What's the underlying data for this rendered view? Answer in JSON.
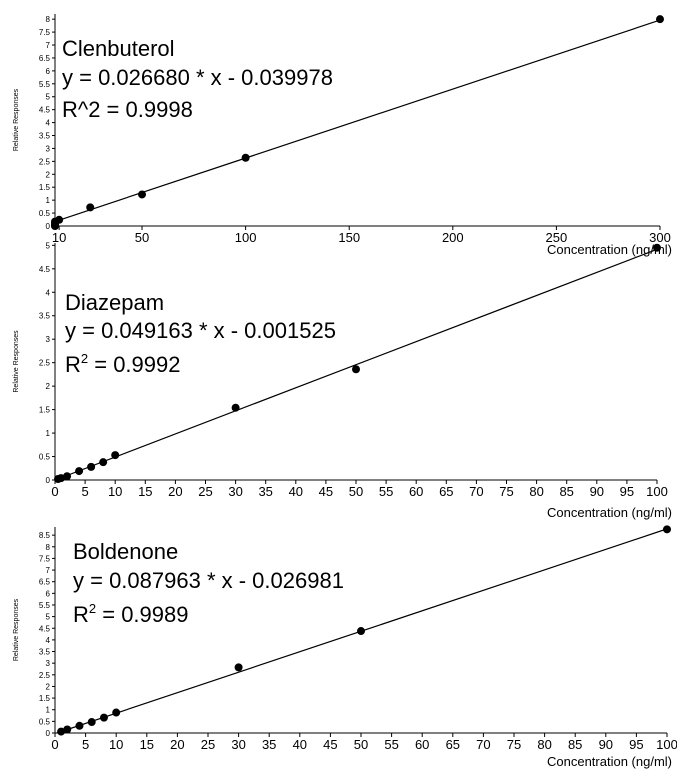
{
  "chart_data": [
    {
      "type": "scatter",
      "title": "Clenbuterol",
      "equation": "y = 0.026680 * x  - 0.039978",
      "r2_base": "R^2 = 0.9998",
      "r2_sup": "",
      "r2_rest": "",
      "xlabel": "Concentration (ng/ml)",
      "ylabel": "Relative Responses",
      "xlim": [
        8,
        300
      ],
      "ylim": [
        0,
        8.2
      ],
      "xticks": [
        10,
        50,
        100,
        150,
        200,
        250,
        300
      ],
      "xtick_labels": [
        "10",
        "50",
        "100",
        "150",
        "200",
        "250",
        "300"
      ],
      "yticks": [
        0,
        0.5,
        1,
        1.5,
        2,
        2.5,
        3,
        3.5,
        4,
        4.5,
        5,
        5.5,
        6,
        6.5,
        7,
        7.5,
        8
      ],
      "ytick_labels": [
        "0",
        "0.5",
        "1",
        "1.5",
        "2",
        "2.5",
        "3",
        "3.5",
        "4",
        "4.5",
        "5",
        "5.5",
        "6",
        "6.5",
        "7",
        "7.5",
        "8"
      ],
      "fit": {
        "slope": 0.02668,
        "intercept": -0.039978
      },
      "points": [
        {
          "x": 1,
          "y": 0.0
        },
        {
          "x": 2,
          "y": 0.01
        },
        {
          "x": 4,
          "y": 0.06
        },
        {
          "x": 6,
          "y": 0.12
        },
        {
          "x": 8,
          "y": 0.17
        },
        {
          "x": 10,
          "y": 0.24
        },
        {
          "x": 25,
          "y": 0.72
        },
        {
          "x": 50,
          "y": 1.22
        },
        {
          "x": 100,
          "y": 2.64
        },
        {
          "x": 300,
          "y": 8.0
        }
      ]
    },
    {
      "type": "scatter",
      "title": "Diazepam",
      "equation": "y = 0.049163 * x  - 0.001525",
      "r2_base": "R",
      "r2_sup": "2",
      "r2_rest": " = 0.9992",
      "xlabel": "Concentration (ng/ml)",
      "ylabel": "Relative Responses",
      "xlim": [
        0,
        100
      ],
      "ylim": [
        0,
        5.05
      ],
      "xticks": [
        0,
        5,
        10,
        15,
        20,
        25,
        30,
        35,
        40,
        45,
        50,
        55,
        60,
        65,
        70,
        75,
        80,
        85,
        90,
        95,
        100
      ],
      "xtick_labels": [
        "0",
        "5",
        "10",
        "15",
        "20",
        "25",
        "30",
        "35",
        "40",
        "45",
        "50",
        "55",
        "60",
        "65",
        "70",
        "75",
        "80",
        "85",
        "90",
        "95",
        "100"
      ],
      "yticks": [
        0,
        0.5,
        1,
        1.5,
        2,
        2.5,
        3,
        3.5,
        4,
        4.5,
        5
      ],
      "ytick_labels": [
        "0",
        "0.5",
        "1",
        "1.5",
        "2",
        "2.5",
        "3",
        "3.5",
        "4",
        "4.5",
        "5"
      ],
      "fit": {
        "slope": 0.049163,
        "intercept": -0.001525
      },
      "points": [
        {
          "x": 0.5,
          "y": 0.02
        },
        {
          "x": 1,
          "y": 0.04
        },
        {
          "x": 2,
          "y": 0.08
        },
        {
          "x": 4,
          "y": 0.19
        },
        {
          "x": 6,
          "y": 0.28
        },
        {
          "x": 8,
          "y": 0.38
        },
        {
          "x": 10,
          "y": 0.53
        },
        {
          "x": 30,
          "y": 1.54
        },
        {
          "x": 50,
          "y": 2.36
        },
        {
          "x": 100,
          "y": 4.95
        }
      ]
    },
    {
      "type": "scatter",
      "title": "Boldenone",
      "equation": "y = 0.087963 * x  - 0.026981",
      "r2_base": "R",
      "r2_sup": "2",
      "r2_rest": " = 0.9989",
      "xlabel": "Concentration (ng/ml)",
      "ylabel": "Relative Responses",
      "xlim": [
        0,
        100
      ],
      "ylim": [
        0,
        8.85
      ],
      "xticks": [
        0,
        5,
        10,
        15,
        20,
        25,
        30,
        35,
        40,
        45,
        50,
        55,
        60,
        65,
        70,
        75,
        80,
        85,
        90,
        95,
        100
      ],
      "xtick_labels": [
        "0",
        "5",
        "10",
        "15",
        "20",
        "25",
        "30",
        "35",
        "40",
        "45",
        "50",
        "55",
        "60",
        "65",
        "70",
        "75",
        "80",
        "85",
        "90",
        "95",
        "100"
      ],
      "yticks": [
        0,
        0.5,
        1,
        1.5,
        2,
        2.5,
        3,
        3.5,
        4,
        4.5,
        5,
        5.5,
        6,
        6.5,
        7,
        7.5,
        8,
        8.5
      ],
      "ytick_labels": [
        "0",
        "0.5",
        "1",
        "1.5",
        "2",
        "2.5",
        "3",
        "3.5",
        "4",
        "4.5",
        "5",
        "5.5",
        "6",
        "6.5",
        "7",
        "7.5",
        "8",
        "8.5"
      ],
      "fit": {
        "slope": 0.087963,
        "intercept": -0.026981
      },
      "points": [
        {
          "x": 1,
          "y": 0.06
        },
        {
          "x": 2,
          "y": 0.15
        },
        {
          "x": 4,
          "y": 0.31
        },
        {
          "x": 6,
          "y": 0.47
        },
        {
          "x": 8,
          "y": 0.66
        },
        {
          "x": 10,
          "y": 0.88
        },
        {
          "x": 30,
          "y": 2.82
        },
        {
          "x": 50,
          "y": 4.38
        },
        {
          "x": 100,
          "y": 8.75
        }
      ]
    }
  ]
}
